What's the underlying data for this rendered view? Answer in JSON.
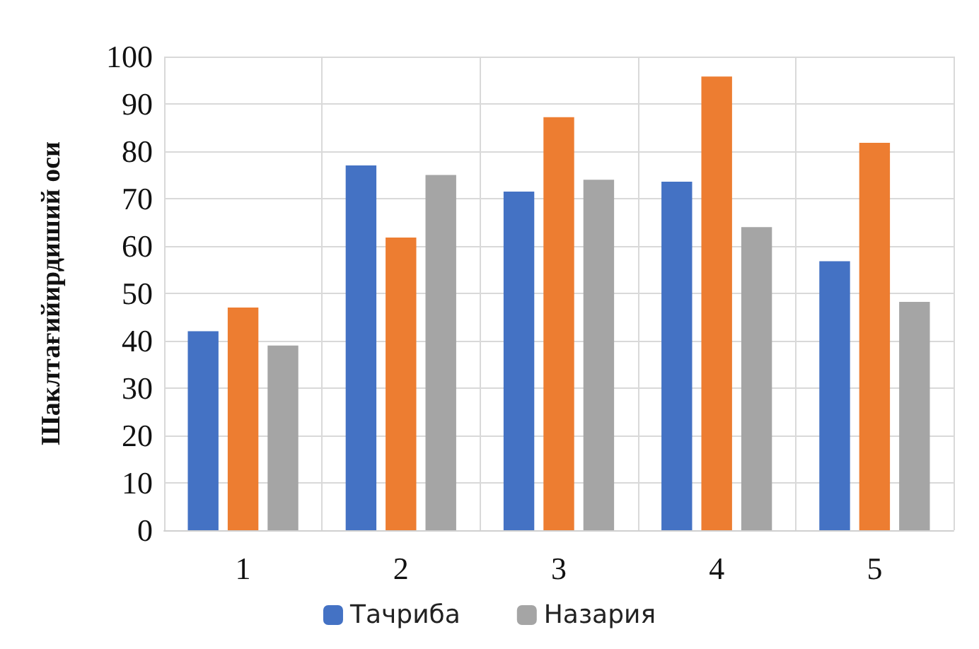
{
  "chart_data": {
    "type": "bar",
    "ylabel": "Шаклтағийирдиший оси",
    "categories": [
      "1",
      "2",
      "3",
      "4",
      "5"
    ],
    "series": [
      {
        "name": "Тачриба",
        "color": "#4472c4",
        "values": [
          42,
          77,
          71.5,
          73.6,
          56.8
        ]
      },
      {
        "color": "#ed7d31",
        "values": [
          47,
          61.8,
          87.2,
          95.8,
          81.8
        ]
      },
      {
        "name": "Назария",
        "color": "#a5a5a5",
        "values": [
          39,
          75,
          74,
          64,
          48.2
        ]
      }
    ],
    "ylim": [
      0,
      100
    ],
    "yticks": [
      0,
      10,
      20,
      30,
      40,
      50,
      60,
      70,
      80,
      90,
      100
    ],
    "grid": true,
    "legend": "bottom"
  }
}
